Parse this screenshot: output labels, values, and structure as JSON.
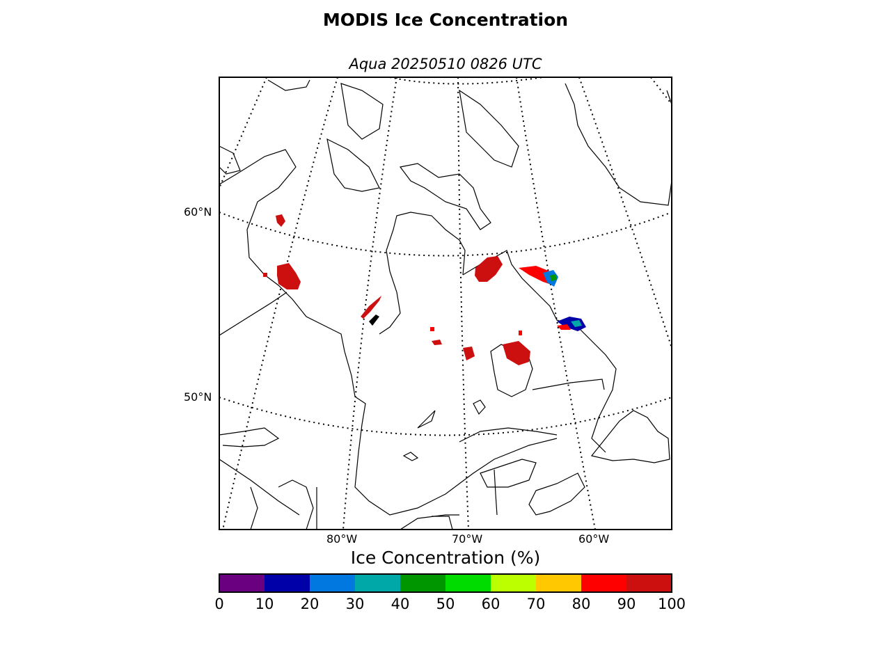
{
  "title": "MODIS Ice Concentration",
  "subtitle": "Aqua 20250510 0826 UTC",
  "lat_labels": [
    "60°N",
    "50°N"
  ],
  "lon_labels": [
    "80°W",
    "70°W",
    "60°W"
  ],
  "colorbar": {
    "label": "Ice Concentration (%)",
    "ticks": [
      "0",
      "10",
      "20",
      "30",
      "40",
      "50",
      "60",
      "70",
      "80",
      "90",
      "100"
    ],
    "colors": [
      "#6a0080",
      "#0000a8",
      "#0078e0",
      "#00a8a8",
      "#009600",
      "#00dc00",
      "#bcff00",
      "#ffc800",
      "#ff0000",
      "#cc1010"
    ]
  },
  "map": {
    "projection": "polar stereographic",
    "graticule": "dotted",
    "land_fill": "#ffffff",
    "coastline_color": "#000000"
  }
}
